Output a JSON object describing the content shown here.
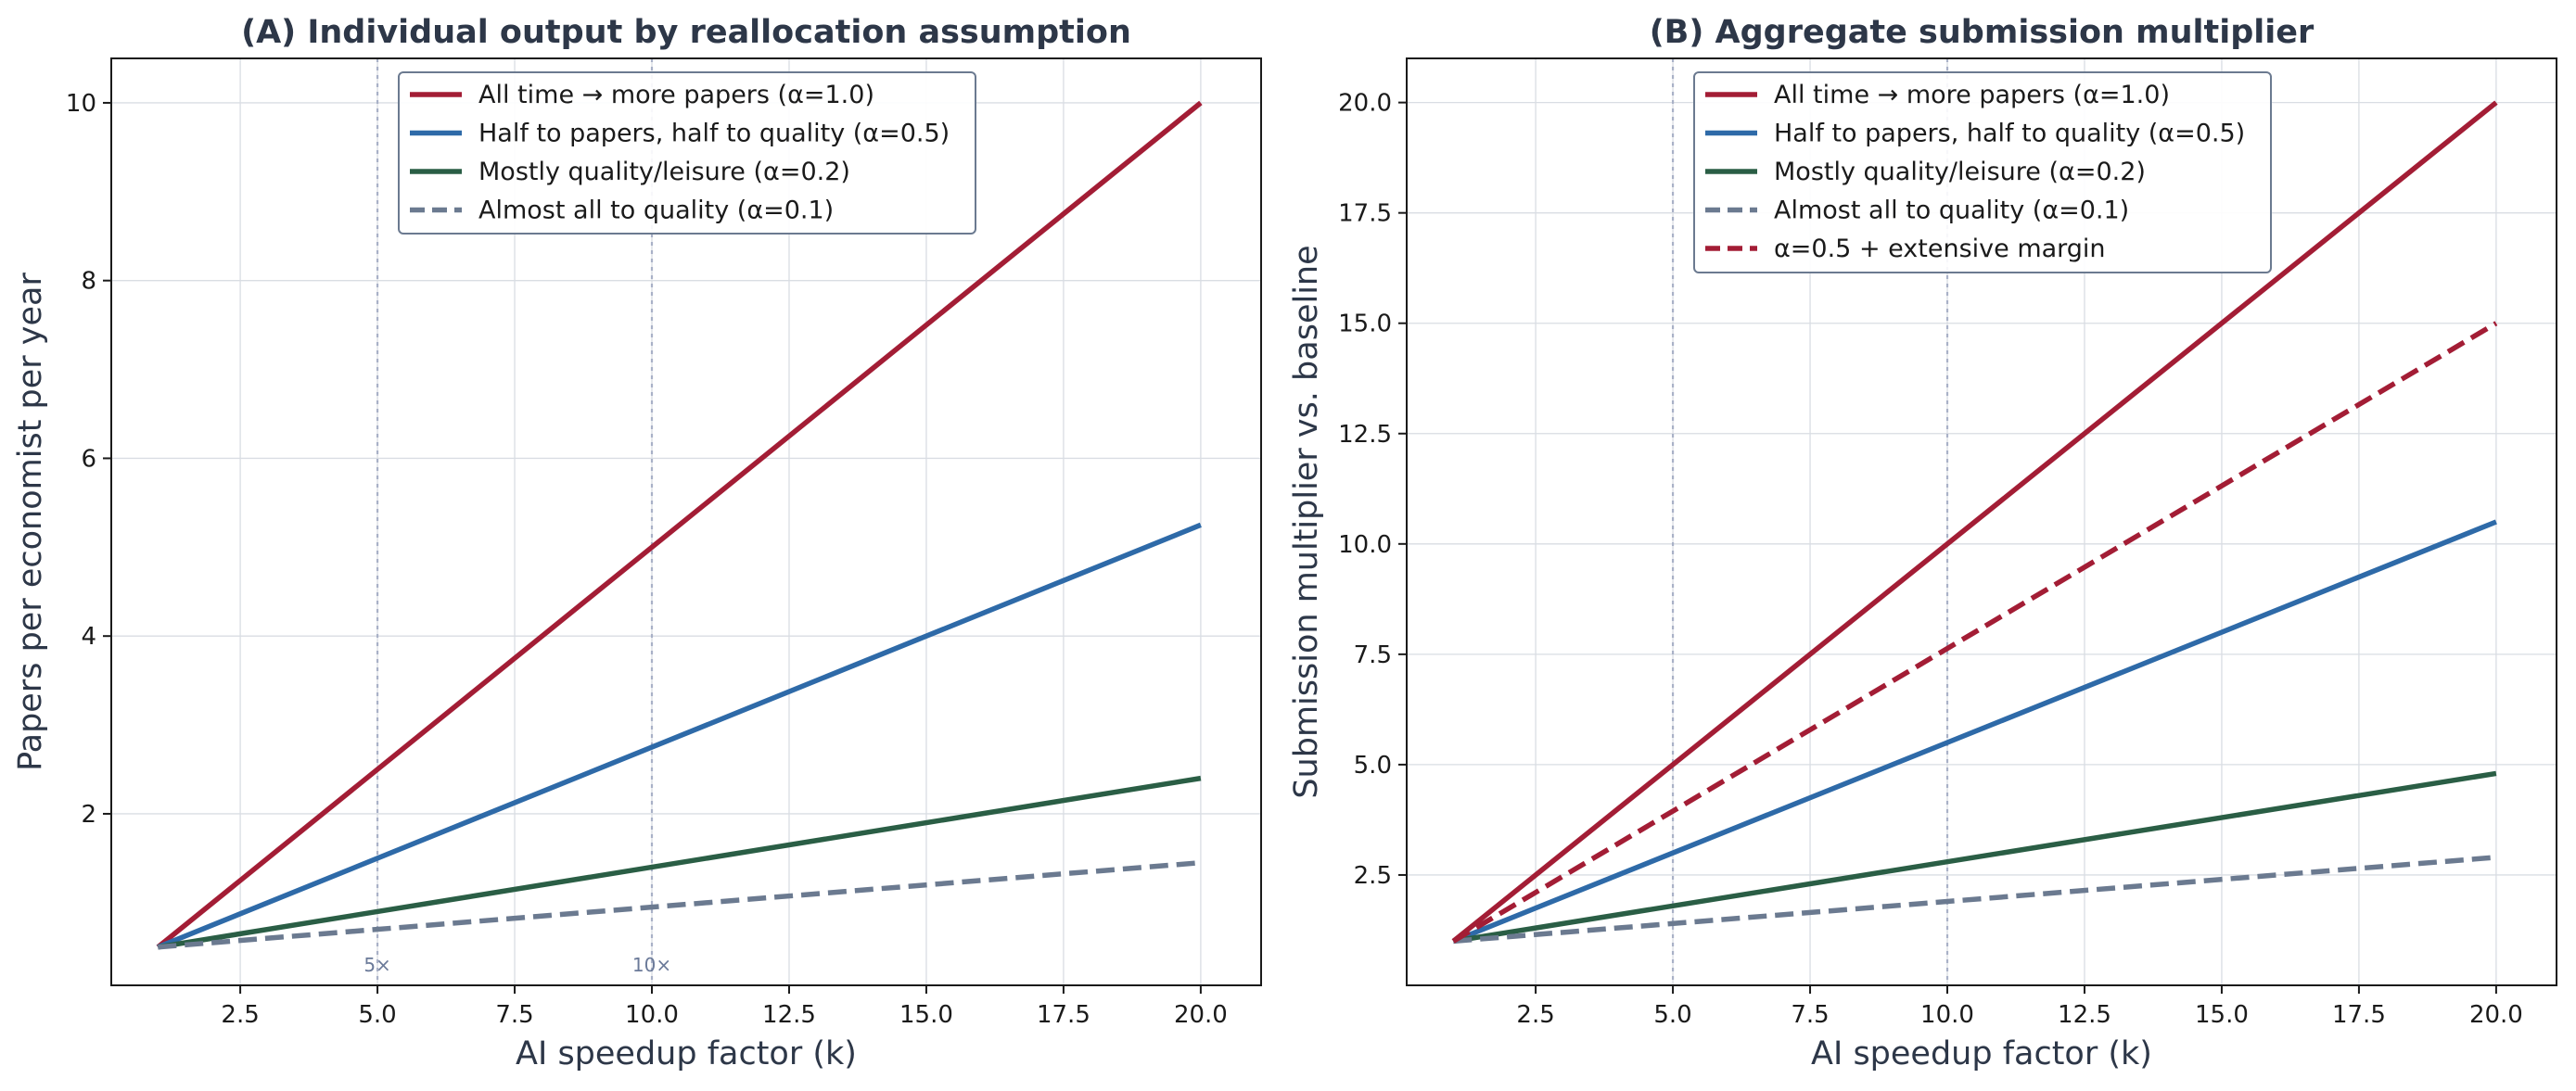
{
  "chart_data": [
    {
      "type": "line",
      "title": "(A) Individual output by reallocation assumption",
      "xlabel": "AI speedup factor (k)",
      "ylabel": "Papers per economist per year",
      "xlim": [
        0.15,
        21.1
      ],
      "ylim": [
        0.07,
        10.5
      ],
      "xticks": [
        2.5,
        5.0,
        7.5,
        10.0,
        12.5,
        15.0,
        17.5,
        20.0
      ],
      "xtick_labels": [
        "2.5",
        "5.0",
        "7.5",
        "10.0",
        "12.5",
        "15.0",
        "17.5",
        "20.0"
      ],
      "yticks": [
        2,
        4,
        6,
        8,
        10
      ],
      "ytick_labels": [
        "2",
        "4",
        "6",
        "8",
        "10"
      ],
      "grid": true,
      "legend_position": "top-center",
      "vlines": [
        5,
        10
      ],
      "annotations": [
        {
          "text": "5×",
          "x": 5,
          "y": 0.3
        },
        {
          "text": "10×",
          "x": 10,
          "y": 0.3
        }
      ],
      "series": [
        {
          "name": "All time → more papers (α=1.0)",
          "x": [
            1,
            20
          ],
          "y": [
            0.5,
            10.0
          ],
          "color": "#a31d35",
          "dashed": false
        },
        {
          "name": "Half to papers, half to quality (α=0.5)",
          "x": [
            1,
            20
          ],
          "y": [
            0.5,
            5.25
          ],
          "color": "#2e6aa8",
          "dashed": false
        },
        {
          "name": "Mostly quality/leisure (α=0.2)",
          "x": [
            1,
            20
          ],
          "y": [
            0.5,
            2.4
          ],
          "color": "#2a5e45",
          "dashed": false
        },
        {
          "name": "Almost all to quality (α=0.1)",
          "x": [
            1,
            20
          ],
          "y": [
            0.5,
            1.45
          ],
          "color": "#6b7a90",
          "dashed": true
        }
      ]
    },
    {
      "type": "line",
      "title": "(B) Aggregate submission multiplier",
      "xlabel": "AI speedup factor (k)",
      "ylabel": "Submission multiplier vs. baseline",
      "xlim": [
        0.15,
        21.1
      ],
      "ylim": [
        0.0,
        21.0
      ],
      "xticks": [
        2.5,
        5.0,
        7.5,
        10.0,
        12.5,
        15.0,
        17.5,
        20.0
      ],
      "xtick_labels": [
        "2.5",
        "5.0",
        "7.5",
        "10.0",
        "12.5",
        "15.0",
        "17.5",
        "20.0"
      ],
      "yticks": [
        2.5,
        5.0,
        7.5,
        10.0,
        12.5,
        15.0,
        17.5,
        20.0
      ],
      "ytick_labels": [
        "2.5",
        "5.0",
        "7.5",
        "10.0",
        "12.5",
        "15.0",
        "17.5",
        "20.0"
      ],
      "grid": true,
      "legend_position": "top-center",
      "vlines": [
        5,
        10
      ],
      "annotations": [],
      "series": [
        {
          "name": "All time → more papers (α=1.0)",
          "x": [
            1,
            20
          ],
          "y": [
            1.0,
            20.0
          ],
          "color": "#a31d35",
          "dashed": false
        },
        {
          "name": "Half to papers, half to quality (α=0.5)",
          "x": [
            1,
            20
          ],
          "y": [
            1.0,
            10.5
          ],
          "color": "#2e6aa8",
          "dashed": false
        },
        {
          "name": "Mostly quality/leisure (α=0.2)",
          "x": [
            1,
            20
          ],
          "y": [
            1.0,
            4.8
          ],
          "color": "#2a5e45",
          "dashed": false
        },
        {
          "name": "Almost all to quality (α=0.1)",
          "x": [
            1,
            20
          ],
          "y": [
            1.0,
            2.9
          ],
          "color": "#6b7a90",
          "dashed": true
        },
        {
          "name": "α=0.5 + extensive margin",
          "x": [
            1,
            20
          ],
          "y": [
            1.0,
            15.0
          ],
          "color": "#a31d35",
          "dashed": true
        }
      ]
    }
  ]
}
